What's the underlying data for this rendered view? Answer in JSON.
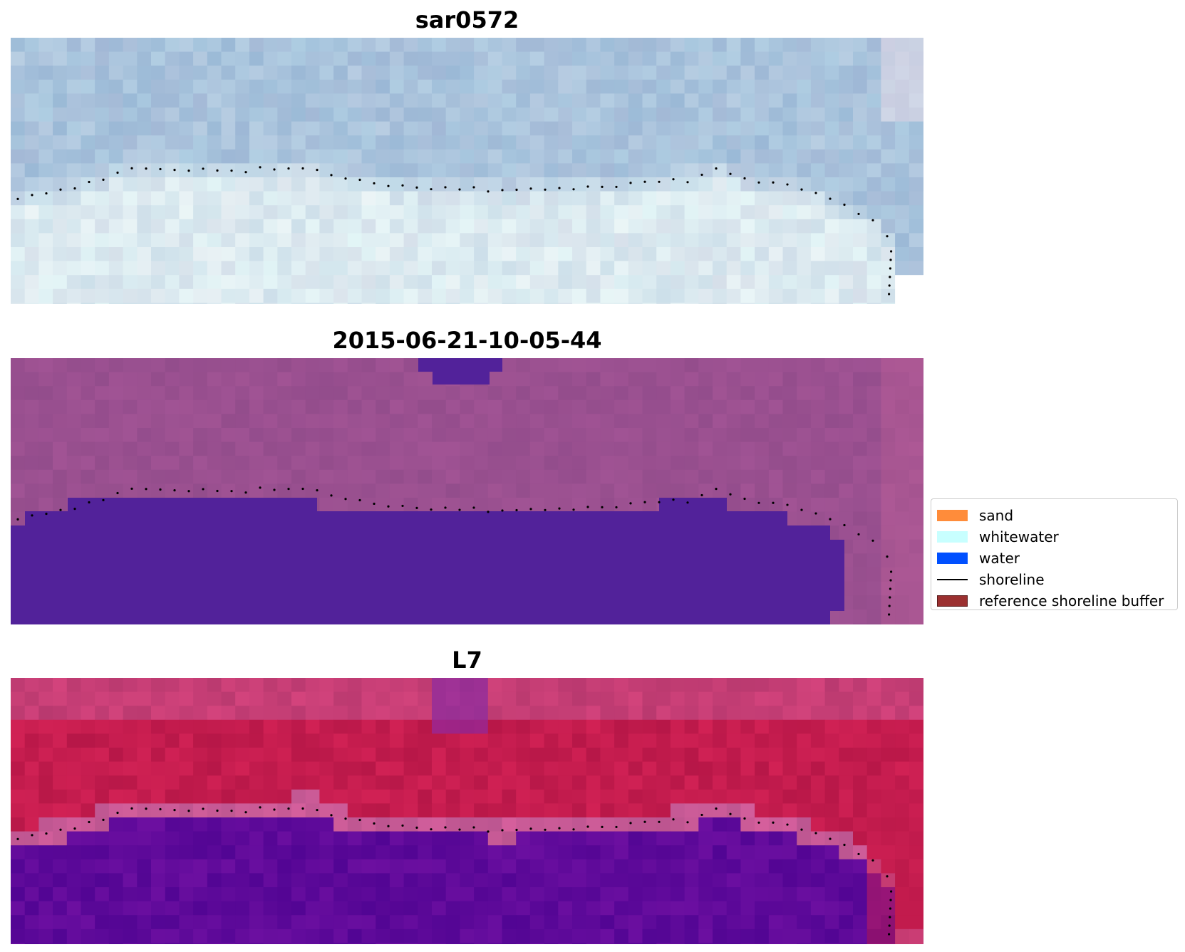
{
  "panels": [
    {
      "title": "sar0572"
    },
    {
      "title": "2015-06-21-10-05-44"
    },
    {
      "title": "L7"
    }
  ],
  "legend": {
    "items": [
      {
        "label": "sand",
        "color": "#ff8c3a",
        "type": "patch"
      },
      {
        "label": "whitewater",
        "color": "#c8ffff",
        "type": "patch"
      },
      {
        "label": "water",
        "color": "#0050ff",
        "type": "patch"
      },
      {
        "label": "shoreline",
        "color": "#000000",
        "type": "line"
      },
      {
        "label": "reference shoreline buffer",
        "color": "#9b3030",
        "type": "patch"
      }
    ]
  },
  "colors": {
    "sar_sea": "#a9c3dc",
    "sar_land": "#dceaf0",
    "class_background": "#9a5090",
    "class_water": "#52229a",
    "l7_land": "#c41c4e",
    "l7_water": "#5f0a9a",
    "shoreline": "#000000"
  }
}
